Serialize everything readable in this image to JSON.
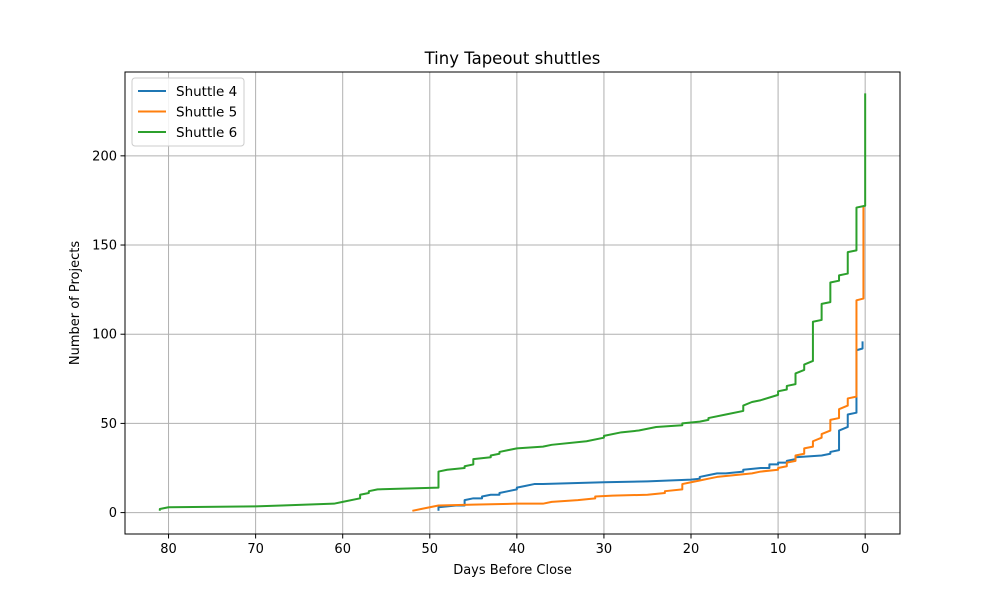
{
  "chart_data": {
    "type": "line",
    "title": "Tiny Tapeout shuttles",
    "xlabel": "Days Before Close",
    "ylabel": "Number of Projects",
    "xlim": [
      85,
      -4
    ],
    "ylim": [
      -12,
      247
    ],
    "x_inverted": true,
    "xticks": [
      80,
      70,
      60,
      50,
      40,
      30,
      20,
      10,
      0
    ],
    "yticks": [
      0,
      50,
      100,
      150,
      200
    ],
    "grid": true,
    "legend_position": "upper-left",
    "series": [
      {
        "name": "Shuttle 4",
        "color": "#1f77b4",
        "points": [
          [
            49,
            1
          ],
          [
            49,
            3
          ],
          [
            47,
            4
          ],
          [
            46,
            4
          ],
          [
            46,
            7
          ],
          [
            45,
            8
          ],
          [
            44,
            8
          ],
          [
            44,
            9
          ],
          [
            43,
            10
          ],
          [
            42,
            10
          ],
          [
            42,
            11
          ],
          [
            41,
            12
          ],
          [
            40,
            13
          ],
          [
            40,
            14
          ],
          [
            39,
            15
          ],
          [
            38,
            16
          ],
          [
            37,
            16
          ],
          [
            30,
            17
          ],
          [
            25,
            17.5
          ],
          [
            20,
            18.5
          ],
          [
            19,
            19
          ],
          [
            19,
            20
          ],
          [
            18,
            21
          ],
          [
            17,
            22
          ],
          [
            16,
            22
          ],
          [
            14,
            23
          ],
          [
            14,
            24
          ],
          [
            12,
            25
          ],
          [
            11,
            25
          ],
          [
            11,
            27
          ],
          [
            10,
            27
          ],
          [
            10,
            28
          ],
          [
            9,
            28
          ],
          [
            9,
            29
          ],
          [
            8,
            30
          ],
          [
            8,
            31
          ],
          [
            5,
            32
          ],
          [
            4,
            33
          ],
          [
            4,
            34
          ],
          [
            3,
            35
          ],
          [
            3,
            46
          ],
          [
            2,
            48
          ],
          [
            2,
            55
          ],
          [
            1,
            56
          ],
          [
            1,
            91
          ],
          [
            0.3,
            92
          ],
          [
            0.3,
            96
          ]
        ]
      },
      {
        "name": "Shuttle 5",
        "color": "#ff7f0e",
        "points": [
          [
            52,
            1
          ],
          [
            51,
            2
          ],
          [
            50,
            3
          ],
          [
            49,
            4
          ],
          [
            45,
            4.5
          ],
          [
            40,
            5
          ],
          [
            37,
            5
          ],
          [
            36,
            6
          ],
          [
            33,
            7
          ],
          [
            31,
            8
          ],
          [
            31,
            9
          ],
          [
            29,
            9.5
          ],
          [
            25,
            10
          ],
          [
            23,
            11
          ],
          [
            23,
            12
          ],
          [
            21,
            13
          ],
          [
            21,
            16
          ],
          [
            20,
            17
          ],
          [
            19,
            18
          ],
          [
            18,
            19
          ],
          [
            17,
            20
          ],
          [
            15,
            21
          ],
          [
            13,
            22
          ],
          [
            12,
            23
          ],
          [
            10,
            24
          ],
          [
            10,
            25
          ],
          [
            9,
            26
          ],
          [
            9,
            28
          ],
          [
            8,
            29
          ],
          [
            8,
            32
          ],
          [
            7,
            33
          ],
          [
            7,
            36
          ],
          [
            6,
            37
          ],
          [
            6,
            40
          ],
          [
            5,
            42
          ],
          [
            5,
            44
          ],
          [
            4,
            46
          ],
          [
            4,
            52
          ],
          [
            3,
            53
          ],
          [
            3,
            58
          ],
          [
            2,
            60
          ],
          [
            2,
            64
          ],
          [
            1,
            65
          ],
          [
            1,
            119
          ],
          [
            0.2,
            120
          ],
          [
            0.2,
            172
          ]
        ]
      },
      {
        "name": "Shuttle 6",
        "color": "#2ca02c",
        "points": [
          [
            81,
            1
          ],
          [
            81,
            2
          ],
          [
            80,
            3
          ],
          [
            70,
            3.5
          ],
          [
            67,
            4
          ],
          [
            61,
            5
          ],
          [
            60,
            6
          ],
          [
            58,
            8
          ],
          [
            58,
            10
          ],
          [
            57,
            11
          ],
          [
            57,
            12
          ],
          [
            56,
            13
          ],
          [
            49,
            14
          ],
          [
            49,
            23
          ],
          [
            48,
            24
          ],
          [
            46,
            25
          ],
          [
            46,
            26
          ],
          [
            45,
            27
          ],
          [
            45,
            30
          ],
          [
            43,
            31
          ],
          [
            43,
            32
          ],
          [
            42,
            33
          ],
          [
            42,
            34
          ],
          [
            41,
            35
          ],
          [
            40,
            36
          ],
          [
            37,
            37
          ],
          [
            36,
            38
          ],
          [
            32,
            40
          ],
          [
            30,
            42
          ],
          [
            30,
            43
          ],
          [
            28,
            45
          ],
          [
            26,
            46
          ],
          [
            24,
            48
          ],
          [
            21,
            49
          ],
          [
            21,
            50
          ],
          [
            19,
            51
          ],
          [
            18,
            52
          ],
          [
            18,
            53
          ],
          [
            16,
            55
          ],
          [
            14,
            57
          ],
          [
            14,
            60
          ],
          [
            13,
            62
          ],
          [
            12,
            63
          ],
          [
            10,
            66
          ],
          [
            10,
            68
          ],
          [
            9,
            69
          ],
          [
            9,
            71
          ],
          [
            8,
            72
          ],
          [
            8,
            78
          ],
          [
            7,
            80
          ],
          [
            7,
            83
          ],
          [
            6,
            85
          ],
          [
            6,
            107
          ],
          [
            5,
            108
          ],
          [
            5,
            117
          ],
          [
            4,
            118
          ],
          [
            4,
            129
          ],
          [
            3,
            130
          ],
          [
            3,
            133
          ],
          [
            2,
            134
          ],
          [
            2,
            146
          ],
          [
            1,
            147
          ],
          [
            1,
            171
          ],
          [
            0,
            172
          ],
          [
            0,
            235
          ]
        ]
      }
    ]
  }
}
